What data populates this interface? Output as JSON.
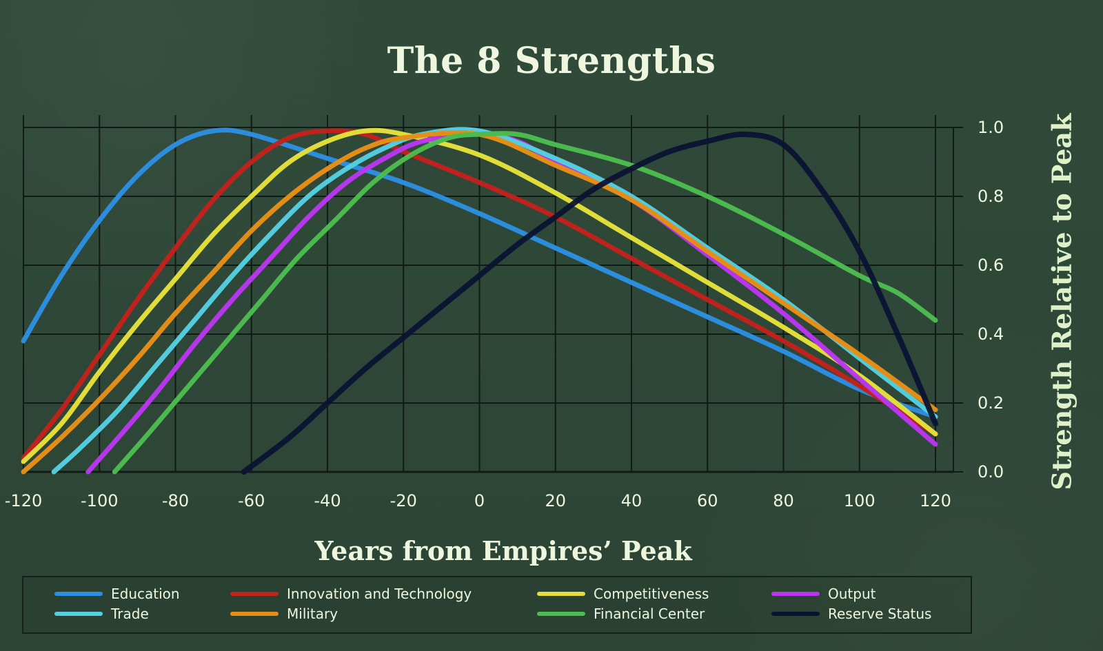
{
  "page": {
    "title": "The 8 Strengths"
  },
  "chart_data": {
    "type": "line",
    "title": "The 8 Strengths",
    "xlabel": "Years from Empires’ Peak",
    "ylabel": "Strength Relative to Peak",
    "xlim": [
      -120,
      120
    ],
    "ylim": [
      0.0,
      1.0
    ],
    "x_ticks": [
      -120,
      -100,
      -80,
      -60,
      -40,
      -20,
      0,
      20,
      40,
      60,
      80,
      100,
      120
    ],
    "y_ticks": [
      0.0,
      0.2,
      0.4,
      0.6,
      0.8,
      1.0
    ],
    "x_tick_labels": [
      "-120",
      "-100",
      "-80",
      "-60",
      "-40",
      "-20",
      "0",
      "20",
      "40",
      "60",
      "80",
      "100",
      "120"
    ],
    "y_tick_labels": [
      "0.0",
      "0.2",
      "0.4",
      "0.6",
      "0.8",
      "1.0"
    ],
    "grid": true,
    "legend_position": "bottom",
    "series": [
      {
        "name": "Education",
        "color": "#2d8fe0",
        "points": [
          [
            -120,
            0.38
          ],
          [
            -110,
            0.57
          ],
          [
            -100,
            0.73
          ],
          [
            -90,
            0.86
          ],
          [
            -80,
            0.95
          ],
          [
            -70,
            0.99
          ],
          [
            -60,
            0.98
          ],
          [
            -40,
            0.91
          ],
          [
            -20,
            0.84
          ],
          [
            0,
            0.75
          ],
          [
            20,
            0.65
          ],
          [
            40,
            0.55
          ],
          [
            60,
            0.45
          ],
          [
            80,
            0.35
          ],
          [
            100,
            0.24
          ],
          [
            120,
            0.16
          ]
        ]
      },
      {
        "name": "Innovation and Technology",
        "color": "#c0231c",
        "points": [
          [
            -120,
            0.04
          ],
          [
            -110,
            0.18
          ],
          [
            -100,
            0.34
          ],
          [
            -90,
            0.5
          ],
          [
            -80,
            0.65
          ],
          [
            -70,
            0.79
          ],
          [
            -60,
            0.9
          ],
          [
            -50,
            0.97
          ],
          [
            -40,
            0.99
          ],
          [
            -30,
            0.98
          ],
          [
            -20,
            0.93
          ],
          [
            0,
            0.84
          ],
          [
            20,
            0.74
          ],
          [
            40,
            0.62
          ],
          [
            60,
            0.5
          ],
          [
            80,
            0.38
          ],
          [
            100,
            0.25
          ],
          [
            120,
            0.11
          ]
        ]
      },
      {
        "name": "Competitiveness",
        "color": "#e3df39",
        "points": [
          [
            -120,
            0.03
          ],
          [
            -110,
            0.14
          ],
          [
            -100,
            0.29
          ],
          [
            -90,
            0.43
          ],
          [
            -80,
            0.56
          ],
          [
            -70,
            0.69
          ],
          [
            -60,
            0.8
          ],
          [
            -50,
            0.9
          ],
          [
            -40,
            0.96
          ],
          [
            -30,
            0.99
          ],
          [
            -20,
            0.98
          ],
          [
            0,
            0.92
          ],
          [
            20,
            0.81
          ],
          [
            40,
            0.68
          ],
          [
            60,
            0.55
          ],
          [
            80,
            0.42
          ],
          [
            100,
            0.28
          ],
          [
            120,
            0.11
          ]
        ]
      },
      {
        "name": "Output",
        "color": "#b936f0",
        "points": [
          [
            -103,
            0.0
          ],
          [
            -95,
            0.1
          ],
          [
            -85,
            0.23
          ],
          [
            -75,
            0.37
          ],
          [
            -65,
            0.5
          ],
          [
            -55,
            0.62
          ],
          [
            -45,
            0.74
          ],
          [
            -35,
            0.84
          ],
          [
            -25,
            0.91
          ],
          [
            -15,
            0.96
          ],
          [
            0,
            0.98
          ],
          [
            10,
            0.96
          ],
          [
            20,
            0.9
          ],
          [
            40,
            0.79
          ],
          [
            60,
            0.63
          ],
          [
            80,
            0.46
          ],
          [
            100,
            0.27
          ],
          [
            120,
            0.08
          ]
        ]
      },
      {
        "name": "Trade",
        "color": "#53cfe0",
        "points": [
          [
            -112,
            0.0
          ],
          [
            -105,
            0.07
          ],
          [
            -95,
            0.18
          ],
          [
            -85,
            0.31
          ],
          [
            -75,
            0.44
          ],
          [
            -65,
            0.57
          ],
          [
            -55,
            0.69
          ],
          [
            -45,
            0.8
          ],
          [
            -35,
            0.88
          ],
          [
            -25,
            0.94
          ],
          [
            -15,
            0.98
          ],
          [
            0,
            0.99
          ],
          [
            20,
            0.91
          ],
          [
            40,
            0.8
          ],
          [
            60,
            0.65
          ],
          [
            80,
            0.5
          ],
          [
            100,
            0.33
          ],
          [
            120,
            0.16
          ]
        ]
      },
      {
        "name": "Military",
        "color": "#e58f16",
        "points": [
          [
            -120,
            0.0
          ],
          [
            -110,
            0.1
          ],
          [
            -100,
            0.21
          ],
          [
            -90,
            0.33
          ],
          [
            -80,
            0.46
          ],
          [
            -70,
            0.58
          ],
          [
            -60,
            0.7
          ],
          [
            -50,
            0.8
          ],
          [
            -40,
            0.88
          ],
          [
            -30,
            0.94
          ],
          [
            -20,
            0.97
          ],
          [
            0,
            0.98
          ],
          [
            20,
            0.89
          ],
          [
            40,
            0.79
          ],
          [
            60,
            0.64
          ],
          [
            80,
            0.49
          ],
          [
            100,
            0.34
          ],
          [
            120,
            0.18
          ]
        ]
      },
      {
        "name": "Financial Center",
        "color": "#4bbc4e",
        "points": [
          [
            -96,
            0.0
          ],
          [
            -88,
            0.1
          ],
          [
            -78,
            0.23
          ],
          [
            -68,
            0.36
          ],
          [
            -58,
            0.49
          ],
          [
            -48,
            0.62
          ],
          [
            -38,
            0.73
          ],
          [
            -28,
            0.84
          ],
          [
            -18,
            0.92
          ],
          [
            -8,
            0.97
          ],
          [
            0,
            0.98
          ],
          [
            10,
            0.98
          ],
          [
            20,
            0.95
          ],
          [
            40,
            0.89
          ],
          [
            60,
            0.8
          ],
          [
            80,
            0.69
          ],
          [
            100,
            0.57
          ],
          [
            110,
            0.52
          ],
          [
            120,
            0.44
          ]
        ]
      },
      {
        "name": "Reserve Status",
        "color": "#0b1332",
        "points": [
          [
            -62,
            0.0
          ],
          [
            -50,
            0.1
          ],
          [
            -40,
            0.2
          ],
          [
            -30,
            0.3
          ],
          [
            -20,
            0.39
          ],
          [
            -10,
            0.48
          ],
          [
            0,
            0.57
          ],
          [
            10,
            0.66
          ],
          [
            20,
            0.74
          ],
          [
            30,
            0.82
          ],
          [
            40,
            0.88
          ],
          [
            50,
            0.93
          ],
          [
            60,
            0.96
          ],
          [
            70,
            0.98
          ],
          [
            80,
            0.95
          ],
          [
            90,
            0.82
          ],
          [
            100,
            0.64
          ],
          [
            110,
            0.4
          ],
          [
            120,
            0.14
          ]
        ]
      }
    ]
  },
  "legend": {
    "items": [
      {
        "label": "Education",
        "color": "#2d8fe0"
      },
      {
        "label": "Innovation and Technology",
        "color": "#c0231c"
      },
      {
        "label": "Competitiveness",
        "color": "#e3df39"
      },
      {
        "label": "Output",
        "color": "#b936f0"
      },
      {
        "label": "Trade",
        "color": "#53cfe0"
      },
      {
        "label": "Military",
        "color": "#e58f16"
      },
      {
        "label": "Financial Center",
        "color": "#4bbc4e"
      },
      {
        "label": "Reserve Status",
        "color": "#0b1332"
      }
    ]
  }
}
